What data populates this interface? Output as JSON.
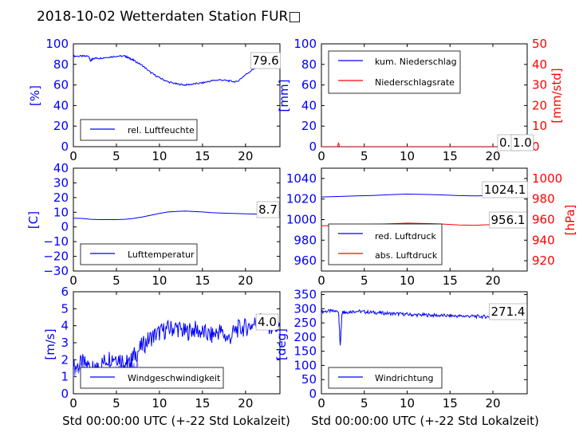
{
  "title": "2018-10-02 Wetterdaten Station FUR□",
  "colors": {
    "blue": "#0000ff",
    "red": "#ff0000",
    "lightblue": "#8080ff",
    "axis": "#000000"
  },
  "chart_data": [
    {
      "type": "line",
      "ylabel": "[%]",
      "xlim": [
        0,
        24
      ],
      "ylim": [
        0,
        100
      ],
      "xticks": [
        "0",
        "5",
        "10",
        "15",
        "20"
      ],
      "yticks": [
        "0",
        "20",
        "40",
        "60",
        "80",
        "100"
      ],
      "legend": {
        "location": "lower-left"
      },
      "series": [
        {
          "name": "rel. Luftfeuchte",
          "color": "#0000ff",
          "x": [
            0,
            1,
            1.8,
            2,
            2.3,
            3,
            4,
            5,
            6,
            6.5,
            7,
            8,
            9,
            10,
            11,
            12,
            13,
            14,
            15,
            16,
            17,
            18,
            19,
            20,
            21,
            22,
            23,
            24
          ],
          "y": [
            88,
            88,
            88,
            83,
            86,
            86,
            87,
            88,
            88,
            86,
            84,
            79,
            72,
            67,
            63,
            61,
            60,
            61,
            62,
            64,
            65,
            64,
            63,
            70,
            76,
            79,
            79.6,
            79.6
          ]
        }
      ],
      "annotation": "79.6"
    },
    {
      "type": "line",
      "ylabel": "[mm]",
      "ylabel_right": "[mm/std]",
      "xlim": [
        0,
        24
      ],
      "ylim": [
        0,
        100
      ],
      "ylim_right": [
        0,
        50
      ],
      "xticks": [
        "0",
        "5",
        "10",
        "15",
        "20"
      ],
      "yticks": [
        "0",
        "20",
        "40",
        "60",
        "80",
        "100"
      ],
      "yticks_right": [
        "0",
        "10",
        "20",
        "30",
        "40",
        "50"
      ],
      "legend": {
        "location": "upper-left"
      },
      "series": [
        {
          "name": "kum. Niederschlag",
          "color": "#0000ff",
          "axis": "left",
          "x": [
            0,
            24
          ],
          "y": [
            0,
            0
          ]
        },
        {
          "name": "Niederschlagsrate",
          "color": "#ff0000",
          "axis": "right",
          "x": [
            0,
            1.9,
            2.0,
            2.1,
            24
          ],
          "y": [
            0,
            0,
            2,
            0,
            0
          ]
        }
      ],
      "annotations": [
        "0.0",
        "1.0"
      ]
    },
    {
      "type": "line",
      "ylabel": "[C]",
      "xlim": [
        0,
        24
      ],
      "ylim": [
        -30,
        40
      ],
      "xticks": [
        "0",
        "5",
        "10",
        "15",
        "20"
      ],
      "yticks": [
        "−30",
        "−20",
        "−10",
        "0",
        "10",
        "20",
        "30",
        "40"
      ],
      "legend": {
        "location": "lower-left"
      },
      "series": [
        {
          "name": "Lufttemperatur",
          "color": "#0000ff",
          "x": [
            0,
            1,
            2,
            3,
            4,
            5,
            6,
            7,
            8,
            9,
            10,
            11,
            12,
            13,
            14,
            15,
            16,
            17,
            18,
            19,
            20,
            21,
            22,
            23,
            24
          ],
          "y": [
            6,
            5.8,
            5.2,
            5,
            5,
            5,
            5.2,
            5.8,
            6.8,
            8,
            9.2,
            10.2,
            10.6,
            10.8,
            10.5,
            10.2,
            9.8,
            9.5,
            9.3,
            9.1,
            8.9,
            8.8,
            8.7,
            8.7,
            8.7
          ]
        }
      ],
      "annotation": "8.7"
    },
    {
      "type": "line",
      "ylabel": "",
      "ylabel_right": "[hPa]",
      "xlim": [
        0,
        24
      ],
      "ylim": [
        950,
        1050
      ],
      "ylim_right": [
        910,
        1010
      ],
      "xticks": [
        "0",
        "5",
        "10",
        "15",
        "20"
      ],
      "yticks": [
        "960",
        "980",
        "1000",
        "1020",
        "1040"
      ],
      "yticks_right": [
        "920",
        "940",
        "960",
        "980",
        "1000"
      ],
      "legend": {
        "location": "lower-left"
      },
      "series": [
        {
          "name": "red. Luftdruck",
          "color": "#0000ff",
          "axis": "left",
          "x": [
            0,
            2,
            4,
            6,
            8,
            10,
            12,
            14,
            16,
            18,
            20,
            22,
            24
          ],
          "y": [
            1022,
            1022.5,
            1023,
            1023.5,
            1024.2,
            1024.8,
            1024.5,
            1024,
            1023.3,
            1023,
            1023.5,
            1024,
            1024.1
          ]
        },
        {
          "name": "abs. Luftdruck",
          "color": "#ff0000",
          "axis": "right",
          "x": [
            0,
            2,
            4,
            6,
            8,
            10,
            12,
            14,
            16,
            18,
            20,
            22,
            24
          ],
          "y": [
            954,
            954.3,
            954.8,
            955.4,
            956,
            956.6,
            956.2,
            955.7,
            954.8,
            954.5,
            955.3,
            956,
            956.1
          ]
        }
      ],
      "annotations": [
        "1024.1",
        "956.1"
      ]
    },
    {
      "type": "line",
      "ylabel": "[m/s]",
      "xlim": [
        0,
        24
      ],
      "ylim": [
        0,
        6
      ],
      "xticks": [
        "0",
        "5",
        "10",
        "15",
        "20"
      ],
      "yticks": [
        "0",
        "1",
        "2",
        "3",
        "4",
        "5",
        "6"
      ],
      "legend": {
        "location": "lower-left"
      },
      "series": [
        {
          "name": "Windgeschwindigkeit",
          "color": "#0000ff",
          "x": [
            0,
            1,
            2,
            2.5,
            3,
            4,
            5,
            6,
            6.5,
            7,
            8,
            9,
            10,
            11,
            12,
            13,
            14,
            15,
            16,
            17,
            18,
            19,
            20,
            21,
            22,
            23,
            24
          ],
          "y": [
            1.5,
            1.8,
            1.6,
            1.2,
            1.6,
            2.1,
            2.2,
            1.9,
            1.7,
            2.2,
            2.8,
            3.3,
            3.6,
            3.8,
            3.9,
            3.6,
            3.8,
            3.6,
            3.4,
            3.7,
            3.2,
            3.8,
            3.9,
            4.1,
            4.4,
            3.9,
            4.0
          ]
        },
        {
          "color": "#8080ff",
          "x": [
            0,
            1,
            2,
            2.5,
            3,
            4,
            5,
            6,
            6.5,
            7,
            7.5
          ],
          "y": [
            1.3,
            1.5,
            1.1,
            0.5,
            0.9,
            1.4,
            1.6,
            1.5,
            1.2,
            1.5,
            1.6
          ]
        }
      ],
      "annotation": "4.0"
    },
    {
      "type": "line",
      "ylabel": "[deg]",
      "xlim": [
        0,
        24
      ],
      "ylim": [
        0,
        360
      ],
      "xticks": [
        "0",
        "5",
        "10",
        "15",
        "20"
      ],
      "yticks": [
        "0",
        "50",
        "100",
        "150",
        "200",
        "250",
        "300",
        "350"
      ],
      "legend": {
        "location": "lower-left"
      },
      "series": [
        {
          "name": "Windrichtung",
          "color": "#0000ff",
          "x": [
            0,
            1,
            2,
            2.2,
            2.4,
            2.6,
            3,
            4,
            5,
            6,
            7,
            8,
            9,
            10,
            11,
            12,
            13,
            14,
            15,
            16,
            17,
            18,
            19,
            20,
            21,
            22,
            23,
            24
          ],
          "y": [
            290,
            292,
            290,
            165,
            285,
            290,
            288,
            292,
            289,
            287,
            285,
            283,
            282,
            280,
            278,
            278,
            277,
            276,
            275,
            274,
            274,
            273,
            272,
            272,
            272,
            272,
            271.4,
            271.4
          ]
        }
      ],
      "annotation": "271.4"
    }
  ],
  "xlabel_bottom": "Std 00:00:00 UTC (+-22 Std Lokalzeit)"
}
